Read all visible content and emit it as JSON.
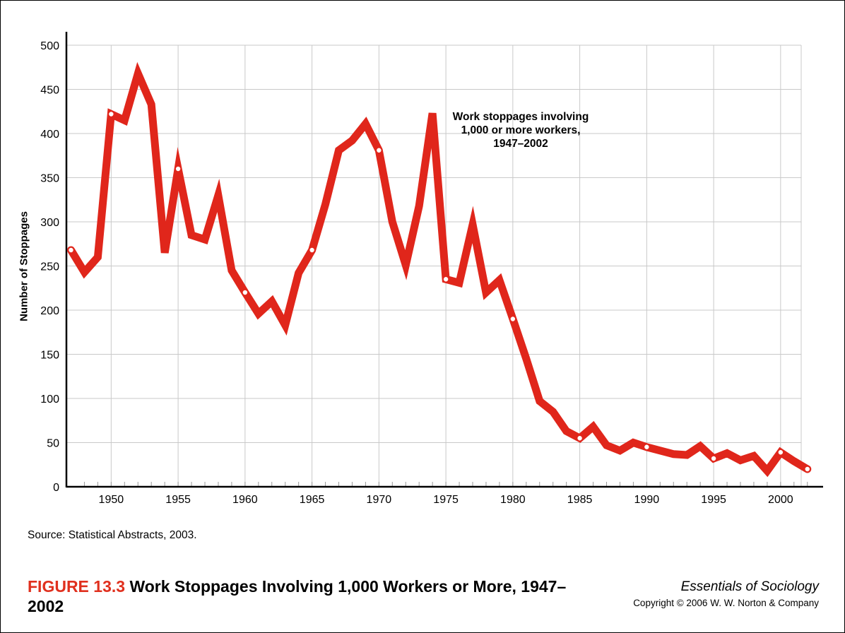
{
  "chart_data": {
    "type": "line",
    "ylabel": "Number of Stoppages",
    "xlabel": "",
    "xlim": [
      1947,
      2002
    ],
    "ylim": [
      0,
      500
    ],
    "x_ticks": [
      1950,
      1955,
      1960,
      1965,
      1970,
      1975,
      1980,
      1985,
      1990,
      1995,
      2000
    ],
    "y_ticks": [
      0,
      50,
      100,
      150,
      200,
      250,
      300,
      350,
      400,
      450,
      500
    ],
    "grid": true,
    "annotation": [
      "Work stoppages involving",
      "1,000 or more workers,",
      "1947–2002"
    ],
    "series": [
      {
        "color": "#e0261b",
        "x": [
          1947,
          1948,
          1949,
          1950,
          1951,
          1952,
          1953,
          1954,
          1955,
          1956,
          1957,
          1958,
          1959,
          1960,
          1961,
          1962,
          1963,
          1964,
          1965,
          1966,
          1967,
          1968,
          1969,
          1970,
          1971,
          1972,
          1973,
          1974,
          1975,
          1976,
          1977,
          1978,
          1979,
          1980,
          1981,
          1982,
          1983,
          1984,
          1985,
          1986,
          1987,
          1988,
          1989,
          1990,
          1991,
          1992,
          1993,
          1994,
          1995,
          1996,
          1997,
          1998,
          1999,
          2000,
          2001,
          2002
        ],
        "y": [
          268,
          243,
          260,
          422,
          415,
          468,
          433,
          265,
          360,
          285,
          280,
          330,
          245,
          220,
          196,
          210,
          183,
          242,
          268,
          320,
          381,
          392,
          411,
          381,
          300,
          251,
          318,
          423,
          235,
          231,
          297,
          220,
          234,
          190,
          145,
          97,
          85,
          63,
          55,
          68,
          47,
          41,
          50,
          45,
          41,
          37,
          36,
          46,
          32,
          38,
          30,
          35,
          18,
          39,
          29,
          20
        ],
        "markers_at": [
          1947,
          1950,
          1955,
          1960,
          1965,
          1970,
          1975,
          1980,
          1985,
          1990,
          1995,
          2000,
          2002
        ]
      }
    ]
  },
  "source_note": "Source: Statistical Abstracts, 2003.",
  "figure": {
    "number": "FIGURE 13.3",
    "title": "Work Stoppages Involving 1,000 Workers or More, 1947–2002"
  },
  "publisher": {
    "book": "Essentials of Sociology",
    "copyright": "Copyright © 2006 W. W. Norton & Company"
  }
}
